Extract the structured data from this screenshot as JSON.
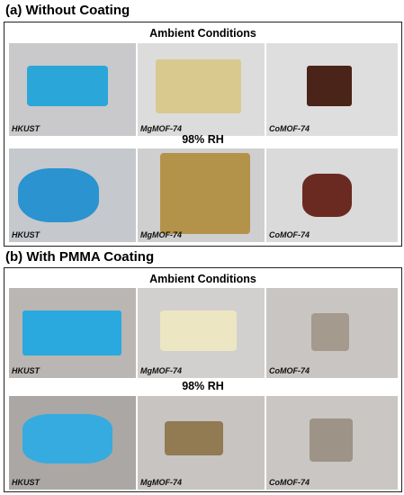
{
  "panels": [
    {
      "title": "(a) Without Coating",
      "rows": [
        {
          "condition": "Ambient Conditions",
          "samples": [
            "HKUST",
            "MgMOF-74",
            "CoMOF-74"
          ]
        },
        {
          "condition": "98% RH",
          "samples": [
            "HKUST",
            "MgMOF-74",
            "CoMOF-74"
          ]
        }
      ]
    },
    {
      "title": "(b) With PMMA Coating",
      "rows": [
        {
          "condition": "Ambient Conditions",
          "samples": [
            "HKUST",
            "MgMOF-74",
            "CoMOF-74"
          ]
        },
        {
          "condition": "98% RH",
          "samples": [
            "HKUST",
            "MgMOF-74",
            "CoMOF-74"
          ]
        }
      ]
    }
  ]
}
